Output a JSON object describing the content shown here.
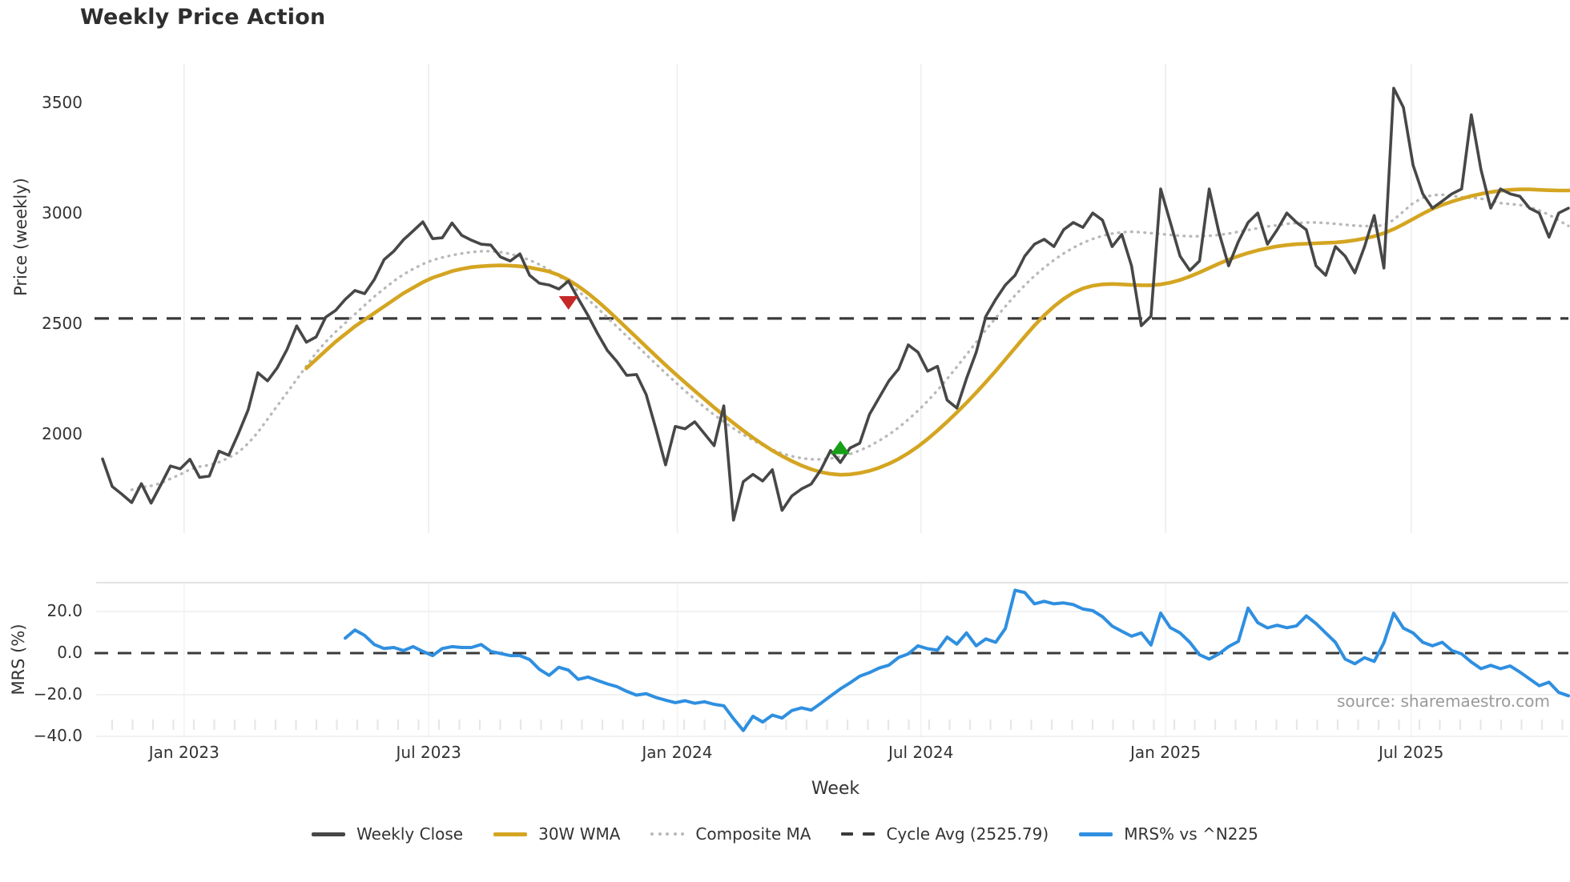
{
  "title": "Weekly Price Action",
  "axes": {
    "price_label": "Price (weekly)",
    "mrs_label": "MRS (%)",
    "x_label": "Week"
  },
  "source_text": "source: sharemaestro.com",
  "colors": {
    "close": "#474747",
    "wma": "#d4a521",
    "composite": "#b9b9b9",
    "cycle": "#3a3a3a",
    "mrs": "#2f8fe0",
    "grid": "#ededed",
    "marker_red": "#c62828",
    "marker_green": "#18a018"
  },
  "legend": [
    {
      "label": "Weekly Close",
      "style": "solid",
      "color": "#474747"
    },
    {
      "label": "30W WMA",
      "style": "solid",
      "color": "#d4a521"
    },
    {
      "label": "Composite MA",
      "style": "dotted",
      "color": "#b9b9b9"
    },
    {
      "label": "Cycle Avg (2525.79)",
      "style": "dashed",
      "color": "#3a3a3a"
    },
    {
      "label": "MRS% vs ^N225",
      "style": "solid",
      "color": "#2f8fe0"
    }
  ],
  "chart_data": [
    {
      "type": "line",
      "panel": "price",
      "title": "Weekly Price Action",
      "xlabel": "Week",
      "ylabel": "Price (weekly)",
      "ylim": [
        1555,
        3680
      ],
      "yticks": [
        {
          "v": 3500,
          "label": "3500"
        },
        {
          "v": 3000,
          "label": "3000"
        },
        {
          "v": 2500,
          "label": "2500"
        },
        {
          "v": 2000,
          "label": "2000"
        }
      ],
      "xticks": [
        {
          "idx": 8.4,
          "label": "Jan 2023"
        },
        {
          "idx": 33.6,
          "label": "Jul 2023"
        },
        {
          "idx": 59.2,
          "label": "Jan 2024"
        },
        {
          "idx": 84.3,
          "label": "Jul 2024"
        },
        {
          "idx": 109.5,
          "label": "Jan 2025"
        },
        {
          "idx": 134.8,
          "label": "Jul 2025"
        }
      ],
      "grid": "vertical",
      "legend_position": "bottom",
      "cycle_avg": 2525.79,
      "markers": [
        {
          "idx": 48,
          "value": 2598,
          "shape": "triangle-down",
          "color": "#c62828",
          "meaning": "sell-signal"
        },
        {
          "idx": 76,
          "value": 1940,
          "shape": "triangle-up",
          "color": "#18a018",
          "meaning": "buy-signal"
        }
      ],
      "series": [
        {
          "name": "Weekly Close",
          "values": [
            1890,
            1765,
            1730,
            1692,
            1778,
            1690,
            1772,
            1858,
            1845,
            1888,
            1806,
            1812,
            1925,
            1906,
            2005,
            2112,
            2280,
            2243,
            2302,
            2385,
            2492,
            2418,
            2442,
            2532,
            2562,
            2612,
            2652,
            2638,
            2702,
            2792,
            2830,
            2882,
            2922,
            2963,
            2887,
            2891,
            2958,
            2902,
            2880,
            2862,
            2858,
            2804,
            2786,
            2818,
            2721,
            2685,
            2677,
            2659,
            2695,
            2616,
            2540,
            2457,
            2381,
            2330,
            2268,
            2272,
            2181,
            2026,
            1863,
            2037,
            2026,
            2058,
            2004,
            1950,
            2130,
            1613,
            1787,
            1820,
            1790,
            1841,
            1657,
            1722,
            1754,
            1776,
            1841,
            1928,
            1874,
            1939,
            1961,
            2091,
            2167,
            2243,
            2297,
            2406,
            2373,
            2287,
            2309,
            2156,
            2120,
            2254,
            2373,
            2536,
            2612,
            2677,
            2721,
            2808,
            2862,
            2884,
            2851,
            2927,
            2960,
            2938,
            3003,
            2971,
            2851,
            2906,
            2764,
            2493,
            2536,
            3112,
            2960,
            2808,
            2743,
            2786,
            3112,
            2916,
            2764,
            2873,
            2960,
            3003,
            2862,
            2927,
            3003,
            2960,
            2927,
            2764,
            2721,
            2851,
            2808,
            2732,
            2851,
            2992,
            2754,
            3568,
            3481,
            3220,
            3090,
            3025,
            3057,
            3090,
            3112,
            3448,
            3199,
            3025,
            3112,
            3090,
            3079,
            3025,
            3003,
            2894,
            3003,
            3025
          ]
        },
        {
          "name": "30W WMA",
          "values": [
            null,
            null,
            null,
            null,
            null,
            null,
            null,
            null,
            null,
            null,
            null,
            null,
            null,
            null,
            null,
            null,
            null,
            null,
            null,
            null,
            null,
            2300,
            2340,
            2380,
            2420,
            2455,
            2490,
            2520,
            2550,
            2580,
            2610,
            2640,
            2665,
            2690,
            2710,
            2725,
            2740,
            2750,
            2758,
            2762,
            2765,
            2766,
            2765,
            2762,
            2756,
            2748,
            2738,
            2722,
            2700,
            2672,
            2640,
            2604,
            2565,
            2524,
            2482,
            2440,
            2398,
            2356,
            2315,
            2275,
            2236,
            2198,
            2160,
            2123,
            2087,
            2052,
            2018,
            1986,
            1956,
            1928,
            1903,
            1880,
            1860,
            1843,
            1830,
            1822,
            1818,
            1820,
            1826,
            1836,
            1850,
            1868,
            1890,
            1916,
            1946,
            1980,
            2018,
            2058,
            2100,
            2144,
            2190,
            2238,
            2288,
            2340,
            2392,
            2444,
            2494,
            2540,
            2580,
            2614,
            2642,
            2662,
            2674,
            2680,
            2682,
            2680,
            2678,
            2676,
            2676,
            2680,
            2688,
            2700,
            2716,
            2734,
            2754,
            2774,
            2792,
            2808,
            2822,
            2834,
            2844,
            2852,
            2858,
            2862,
            2864,
            2866,
            2868,
            2870,
            2874,
            2880,
            2888,
            2898,
            2912,
            2930,
            2952,
            2976,
            3000,
            3022,
            3040,
            3055,
            3068,
            3080,
            3090,
            3098,
            3104,
            3108,
            3110,
            3110,
            3108,
            3106,
            3105,
            3105,
            3105
          ]
        },
        {
          "name": "Composite MA",
          "values": [
            null,
            null,
            null,
            1750,
            1762,
            1768,
            1780,
            1800,
            1820,
            1842,
            1855,
            1862,
            1875,
            1895,
            1920,
            1960,
            2010,
            2070,
            2130,
            2190,
            2250,
            2310,
            2370,
            2420,
            2465,
            2505,
            2545,
            2585,
            2625,
            2660,
            2695,
            2725,
            2750,
            2772,
            2790,
            2802,
            2812,
            2820,
            2826,
            2830,
            2830,
            2826,
            2818,
            2806,
            2790,
            2770,
            2746,
            2718,
            2686,
            2650,
            2612,
            2572,
            2530,
            2488,
            2446,
            2404,
            2362,
            2320,
            2278,
            2238,
            2198,
            2160,
            2124,
            2090,
            2058,
            2028,
            2000,
            1975,
            1952,
            1932,
            1915,
            1902,
            1893,
            1888,
            1888,
            1892,
            1900,
            1912,
            1928,
            1948,
            1972,
            2000,
            2032,
            2068,
            2108,
            2152,
            2200,
            2252,
            2306,
            2362,
            2418,
            2474,
            2528,
            2580,
            2630,
            2676,
            2718,
            2756,
            2790,
            2820,
            2846,
            2868,
            2886,
            2900,
            2910,
            2916,
            2918,
            2916,
            2912,
            2908,
            2904,
            2900,
            2898,
            2898,
            2900,
            2904,
            2910,
            2918,
            2926,
            2934,
            2942,
            2948,
            2954,
            2958,
            2960,
            2960,
            2958,
            2954,
            2950,
            2946,
            2944,
            2944,
            2948,
            2972,
            3010,
            3048,
            3072,
            3084,
            3086,
            3082,
            3074,
            3072,
            3068,
            3058,
            3048,
            3044,
            3040,
            3030,
            3015,
            2995,
            2970,
            2945
          ]
        }
      ]
    },
    {
      "type": "line",
      "panel": "mrs",
      "ylabel": "MRS (%)",
      "ylim": [
        -43,
        33
      ],
      "yticks": [
        {
          "v": 20,
          "label": "20.0"
        },
        {
          "v": 0,
          "label": "0.0"
        },
        {
          "v": -20,
          "label": "−20.0"
        },
        {
          "v": -40,
          "label": "−40.0"
        }
      ],
      "zero_line": "dashed",
      "grid": "horizontal",
      "series": [
        {
          "name": "MRS% vs ^N225",
          "values": [
            null,
            null,
            null,
            null,
            null,
            null,
            null,
            null,
            null,
            null,
            null,
            null,
            null,
            null,
            null,
            null,
            null,
            null,
            null,
            null,
            null,
            null,
            null,
            null,
            null,
            7.2,
            11.1,
            8.5,
            4.1,
            2.2,
            2.7,
            1.2,
            3.1,
            0.8,
            -1.2,
            2.2,
            3.1,
            2.7,
            2.7,
            4.1,
            0.8,
            -0.2,
            -1.2,
            -1.2,
            -3.1,
            -7.8,
            -10.7,
            -6.8,
            -8.2,
            -12.6,
            -11.5,
            -13.2,
            -14.8,
            -16.1,
            -18.4,
            -20.2,
            -19.5,
            -21.3,
            -22.6,
            -23.8,
            -22.9,
            -24.1,
            -23.4,
            -24.6,
            -25.3,
            -31.5,
            -37.2,
            -30.4,
            -33.1,
            -29.8,
            -31.2,
            -27.6,
            -26.3,
            -27.4,
            -24.1,
            -20.6,
            -17.2,
            -14.3,
            -11.1,
            -9.4,
            -7.2,
            -5.8,
            -2.1,
            -0.4,
            3.5,
            2.1,
            1.4,
            7.7,
            4.3,
            9.7,
            3.5,
            6.8,
            5.2,
            11.8,
            30.2,
            29.1,
            23.7,
            24.9,
            23.7,
            24.1,
            23.3,
            21.2,
            20.4,
            17.5,
            13.0,
            10.5,
            8.1,
            9.7,
            3.9,
            19.2,
            12.2,
            9.7,
            5.2,
            -0.8,
            -2.9,
            -0.4,
            3.1,
            5.6,
            21.6,
            14.6,
            12.1,
            13.4,
            12.2,
            13.1,
            17.9,
            14.2,
            9.7,
            5.2,
            -2.9,
            -5.1,
            -2.2,
            -4.0,
            5.0,
            19.2,
            12.0,
            9.7,
            5.2,
            3.5,
            5.2,
            1.2,
            -0.4,
            -4.3,
            -7.5,
            -5.9,
            -7.5,
            -6.2,
            -9.1,
            -12.4,
            -15.7,
            -14.0,
            -18.9,
            -20.5
          ]
        }
      ]
    }
  ]
}
